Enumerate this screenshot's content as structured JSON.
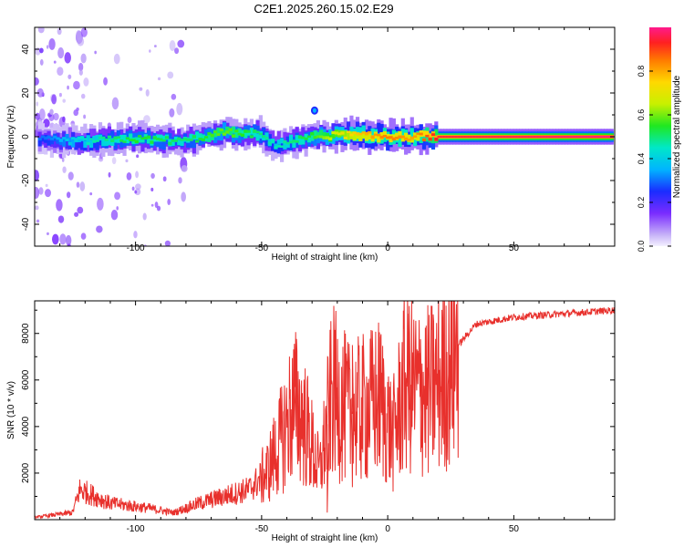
{
  "title": "C2E1.2025.260.15.02.E29",
  "chart_data": [
    {
      "type": "heatmap",
      "title": "C2E1.2025.260.15.02.E29",
      "xlabel": "Height of straight line (km)",
      "ylabel": "Frequency (Hz)",
      "xlim": [
        -140,
        90
      ],
      "ylim": [
        -50,
        50
      ],
      "xticks": [
        -100,
        -50,
        0,
        50
      ],
      "yticks": [
        -40,
        -20,
        0,
        20,
        40
      ],
      "colorbar": {
        "label": "Normalized spectral amplitude",
        "range": [
          0,
          1
        ],
        "ticks": [
          0.0,
          0.2,
          0.4,
          0.6,
          0.8
        ],
        "tick_labels": [
          "0.0",
          "0.2",
          "0.4",
          "0.6",
          "0.8"
        ]
      },
      "ridge": {
        "description_points": [
          {
            "x": -135,
            "f": -1.5,
            "amp": 0.3
          },
          {
            "x": -120,
            "f": -2,
            "amp": 0.45
          },
          {
            "x": -100,
            "f": -1,
            "amp": 0.55
          },
          {
            "x": -80,
            "f": -2,
            "amp": 0.5
          },
          {
            "x": -65,
            "f": 2,
            "amp": 0.6
          },
          {
            "x": -50,
            "f": 1,
            "amp": 0.5
          },
          {
            "x": -45,
            "f": -4,
            "amp": 0.45
          },
          {
            "x": -30,
            "f": 0,
            "amp": 0.55
          },
          {
            "x": -15,
            "f": 1,
            "amp": 0.75
          },
          {
            "x": 0,
            "f": 0,
            "amp": 0.85
          },
          {
            "x": 10,
            "f": 0,
            "amp": 0.8
          },
          {
            "x": 20,
            "f": 0,
            "amp": 0.95
          },
          {
            "x": 90,
            "f": 0,
            "amp": 1.0
          }
        ],
        "spot": {
          "x": -29,
          "f": 12,
          "amp": 0.35
        }
      }
    },
    {
      "type": "line",
      "xlabel": "Height of straight line (km)",
      "ylabel": "SNR (10 * v/v)",
      "xlim": [
        -140,
        90
      ],
      "ylim": [
        0,
        9400
      ],
      "xticks": [
        -100,
        -50,
        0,
        50
      ],
      "yticks": [
        2000,
        4000,
        6000,
        8000
      ],
      "series": [
        {
          "name": "SNR",
          "color": "#e8302c",
          "envelope": [
            {
              "x": -140,
              "y": 100
            },
            {
              "x": -125,
              "y": 300
            },
            {
              "x": -122,
              "y": 1300
            },
            {
              "x": -110,
              "y": 700
            },
            {
              "x": -95,
              "y": 500
            },
            {
              "x": -85,
              "y": 300
            },
            {
              "x": -75,
              "y": 700
            },
            {
              "x": -65,
              "y": 1000
            },
            {
              "x": -55,
              "y": 1300
            },
            {
              "x": -48,
              "y": 2000
            },
            {
              "x": -42,
              "y": 3500
            },
            {
              "x": -37,
              "y": 5000
            },
            {
              "x": -33,
              "y": 4200
            },
            {
              "x": -27,
              "y": 2000
            },
            {
              "x": -22,
              "y": 5500
            },
            {
              "x": -15,
              "y": 4500
            },
            {
              "x": -8,
              "y": 4800
            },
            {
              "x": -3,
              "y": 5200
            },
            {
              "x": 2,
              "y": 3500
            },
            {
              "x": 7,
              "y": 6000
            },
            {
              "x": 12,
              "y": 5500
            },
            {
              "x": 17,
              "y": 5500
            },
            {
              "x": 22,
              "y": 6200
            },
            {
              "x": 28,
              "y": 7500
            },
            {
              "x": 35,
              "y": 8400
            },
            {
              "x": 50,
              "y": 8700
            },
            {
              "x": 70,
              "y": 8850
            },
            {
              "x": 90,
              "y": 9000
            }
          ],
          "spikes": [
            {
              "x": -120,
              "y": 1450
            },
            {
              "x": -37,
              "y": 6100
            },
            {
              "x": -21,
              "y": 8150
            },
            {
              "x": -14,
              "y": 7500
            },
            {
              "x": 8,
              "y": 8850
            },
            {
              "x": 13,
              "y": 7750
            },
            {
              "x": 9,
              "y": 2700
            },
            {
              "x": -24,
              "y": 300
            }
          ]
        }
      ]
    }
  ]
}
